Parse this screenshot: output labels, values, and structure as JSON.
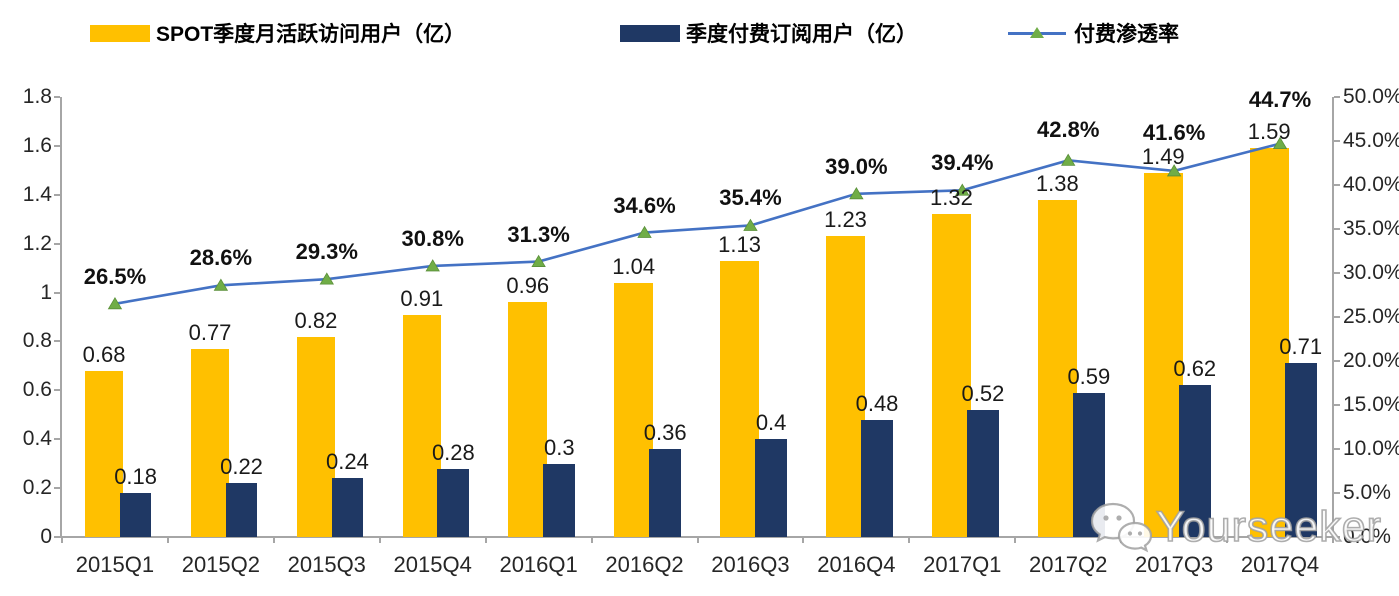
{
  "legend": {
    "items": [
      {
        "label": "SPOT季度月活跃访问用户（亿）",
        "swatch": "bar",
        "color": "#FFC000"
      },
      {
        "label": "季度付费订阅用户（亿）",
        "swatch": "bar",
        "color": "#1F3864"
      },
      {
        "label": "付费渗透率",
        "swatch": "line",
        "color": "#4472C4",
        "marker_color": "#70AD47"
      }
    ]
  },
  "chart_data": {
    "type": "bar+line combo",
    "categories": [
      "2015Q1",
      "2015Q2",
      "2015Q3",
      "2015Q4",
      "2016Q1",
      "2016Q2",
      "2016Q3",
      "2016Q4",
      "2017Q1",
      "2017Q2",
      "2017Q3",
      "2017Q4"
    ],
    "series": [
      {
        "name": "SPOT季度月活跃访问用户（亿）",
        "type": "bar",
        "axis": "left",
        "color": "#FFC000",
        "values": [
          0.68,
          0.77,
          0.82,
          0.91,
          0.96,
          1.04,
          1.13,
          1.23,
          1.32,
          1.38,
          1.49,
          1.59
        ],
        "labels": [
          "0.68",
          "0.77",
          "0.82",
          "0.91",
          "0.96",
          "1.04",
          "1.13",
          "1.23",
          "1.32",
          "1.38",
          "1.49",
          "1.59"
        ]
      },
      {
        "name": "季度付费订阅用户（亿）",
        "type": "bar",
        "axis": "left",
        "color": "#1F3864",
        "values": [
          0.18,
          0.22,
          0.24,
          0.28,
          0.3,
          0.36,
          0.4,
          0.48,
          0.52,
          0.59,
          0.62,
          0.71
        ],
        "labels": [
          "0.18",
          "0.22",
          "0.24",
          "0.28",
          "0.3",
          "0.36",
          "0.4",
          "0.48",
          "0.52",
          "0.59",
          "0.62",
          "0.71"
        ]
      },
      {
        "name": "付费渗透率",
        "type": "line",
        "axis": "right",
        "color": "#4472C4",
        "marker": "triangle",
        "marker_color": "#70AD47",
        "values": [
          26.5,
          28.6,
          29.3,
          30.8,
          31.3,
          34.6,
          35.4,
          39.0,
          39.4,
          42.8,
          41.6,
          44.7
        ],
        "labels": [
          "26.5%",
          "28.6%",
          "29.3%",
          "30.8%",
          "31.3%",
          "34.6%",
          "35.4%",
          "39.0%",
          "39.4%",
          "42.8%",
          "41.6%",
          "44.7%"
        ]
      }
    ],
    "left_axis": {
      "min": 0,
      "max": 1.8,
      "tick_labels": [
        "1.8",
        "1.6",
        "1.4",
        "1.2",
        "1",
        "0.8",
        "0.6",
        "0.4",
        "0.2",
        "0"
      ]
    },
    "right_axis": {
      "min": 0,
      "max": 50,
      "tick_labels": [
        "50.0%",
        "45.0%",
        "40.0%",
        "35.0%",
        "30.0%",
        "25.0%",
        "20.0%",
        "15.0%",
        "10.0%",
        "5.0%",
        "0.0%"
      ]
    },
    "grid": false,
    "legend_position": "top"
  },
  "watermark": {
    "text": "Yourseeker",
    "icon": "wechat-icon"
  },
  "colors": {
    "axis": "#a6a6a6",
    "text": "#262626"
  }
}
